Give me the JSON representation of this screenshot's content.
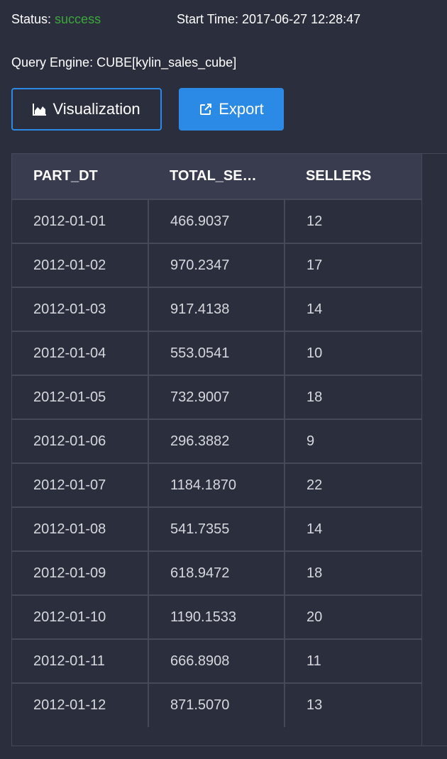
{
  "query_info": {
    "status_label": "Status:",
    "status_value": "success",
    "start_time_label": "Start Time:",
    "start_time_value": "2017-06-27 12:28:47",
    "engine_label": "Query Engine:",
    "engine_value": "CUBE[kylin_sales_cube]"
  },
  "actions": {
    "visualization_label": "Visualization",
    "visualization_icon": "area-chart-icon",
    "export_label": "Export",
    "export_icon": "external-link-icon"
  },
  "colors": {
    "background": "#2b2e3c",
    "header_bg": "#393c4f",
    "accent": "#2b8ae5",
    "success": "#3ca83c"
  },
  "results": {
    "columns": [
      "PART_DT",
      "TOTAL_SE…",
      "SELLERS"
    ],
    "rows": [
      [
        "2012-01-01",
        "466.9037",
        "12"
      ],
      [
        "2012-01-02",
        "970.2347",
        "17"
      ],
      [
        "2012-01-03",
        "917.4138",
        "14"
      ],
      [
        "2012-01-04",
        "553.0541",
        "10"
      ],
      [
        "2012-01-05",
        "732.9007",
        "18"
      ],
      [
        "2012-01-06",
        "296.3882",
        "9"
      ],
      [
        "2012-01-07",
        "1184.1870",
        "22"
      ],
      [
        "2012-01-08",
        "541.7355",
        "14"
      ],
      [
        "2012-01-09",
        "618.9472",
        "18"
      ],
      [
        "2012-01-10",
        "1190.1533",
        "20"
      ],
      [
        "2012-01-11",
        "666.8908",
        "11"
      ],
      [
        "2012-01-12",
        "871.5070",
        "13"
      ]
    ]
  }
}
